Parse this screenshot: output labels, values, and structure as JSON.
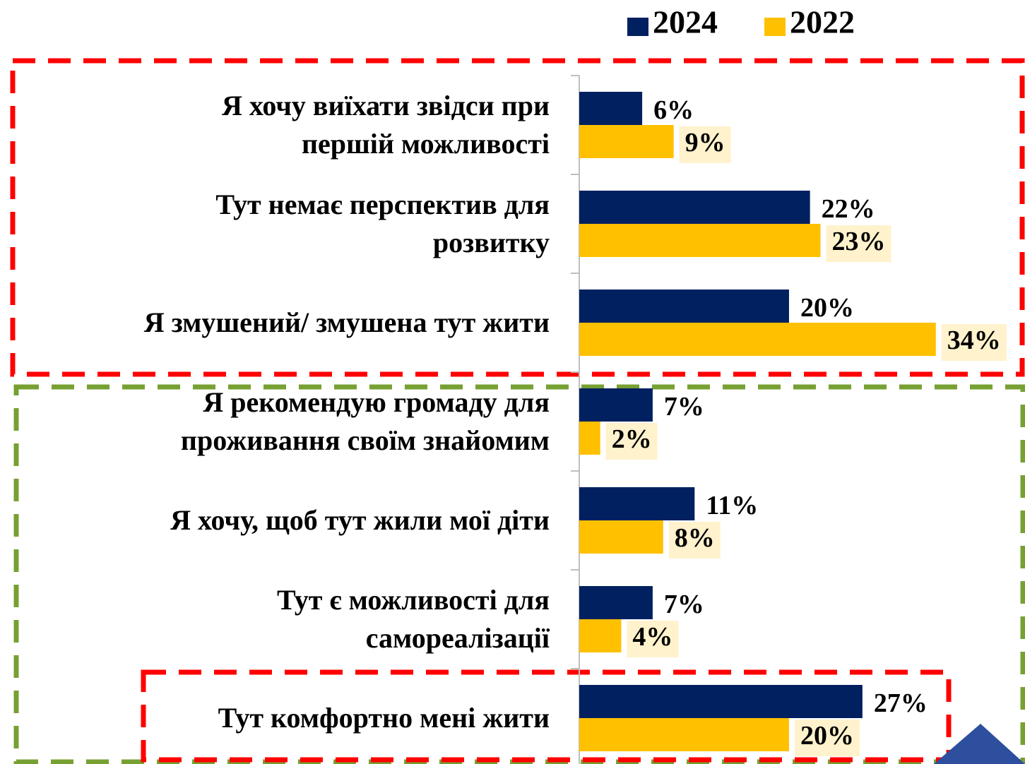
{
  "chart_data": {
    "type": "hbar",
    "categories": [
      "Я хочу виїхати звідси при\nпершій можливості",
      "Тут немає перспектив для\nрозвитку",
      "Я змушений/ змушена тут жити",
      "Я рекомендую громаду для\nпроживання своїм знайомим",
      "Я хочу, щоб тут жили мої діти",
      "Тут є можливості для\nсамореалізації",
      "Тут комфортно мені жити"
    ],
    "series": [
      {
        "name": "2024",
        "color": "#002060",
        "values": [
          6,
          22,
          20,
          7,
          11,
          7,
          27
        ],
        "value_labels": [
          "6%",
          "22%",
          "20%",
          "7%",
          "11%",
          "7%",
          "27%"
        ]
      },
      {
        "name": "2022",
        "color": "#FFC000",
        "values": [
          9,
          23,
          34,
          2,
          8,
          4,
          20
        ],
        "value_labels": [
          "9%",
          "23%",
          "34%",
          "2%",
          "8%",
          "4%",
          "20%"
        ]
      }
    ],
    "xlim": [
      0,
      42.5
    ],
    "label_background": "#FFF2CC"
  }
}
